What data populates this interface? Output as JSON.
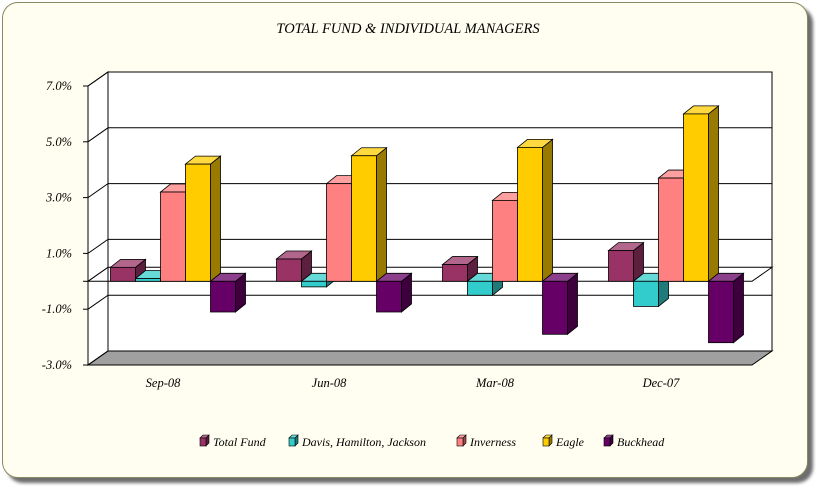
{
  "chart_data": {
    "type": "bar",
    "title": "TOTAL FUND  & INDIVIDUAL MANAGERS",
    "categories": [
      "Sep-08",
      "Jun-08",
      "Mar-08",
      "Dec-07"
    ],
    "series": [
      {
        "name": "Total Fund",
        "color": "#993366",
        "values": [
          0.5,
          0.8,
          0.6,
          1.1
        ]
      },
      {
        "name": "Davis, Hamilton, Jackson",
        "color": "#33cccc",
        "values": [
          0.1,
          -0.2,
          -0.5,
          -0.9
        ]
      },
      {
        "name": "Inverness",
        "color": "#ff8080",
        "values": [
          3.2,
          3.5,
          2.9,
          3.7
        ]
      },
      {
        "name": "Eagle",
        "color": "#ffcc00",
        "values": [
          4.2,
          4.5,
          4.8,
          6.0
        ]
      },
      {
        "name": "Buckhead",
        "color": "#660066",
        "values": [
          -1.1,
          -1.1,
          -1.9,
          -2.2
        ]
      }
    ],
    "ylim": [
      -3.0,
      7.0
    ],
    "yticks": [
      "-3.0%",
      "-1.0%",
      "1.0%",
      "3.0%",
      "5.0%",
      "7.0%"
    ],
    "grid": true,
    "legend": "bottom",
    "xlabel": "",
    "ylabel": ""
  }
}
